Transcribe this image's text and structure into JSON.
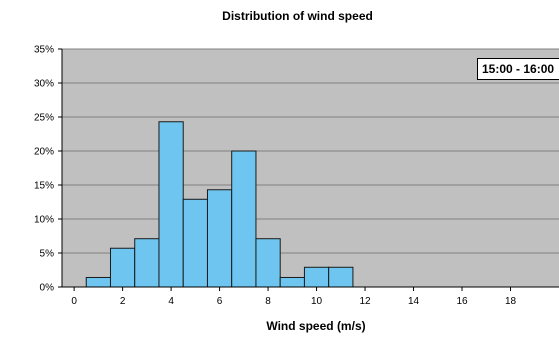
{
  "chart_data": {
    "type": "bar",
    "title": "Distribution of wind speed",
    "xlabel": "Wind speed (m/s)",
    "ylabel": "",
    "annotation": "15:00 - 16:00",
    "ylim": [
      0,
      35
    ],
    "xlim": [
      -0.5,
      20
    ],
    "y_ticks": [
      "0%",
      "5%",
      "10%",
      "15%",
      "20%",
      "25%",
      "30%",
      "35%"
    ],
    "x_ticks": [
      "0",
      "2",
      "4",
      "6",
      "8",
      "10",
      "12",
      "14",
      "16",
      "18"
    ],
    "grid": true,
    "bin_width": 1,
    "bins": [
      {
        "x": 1,
        "value": 1.4
      },
      {
        "x": 2,
        "value": 5.7
      },
      {
        "x": 3,
        "value": 7.1
      },
      {
        "x": 4,
        "value": 24.3
      },
      {
        "x": 5,
        "value": 12.9
      },
      {
        "x": 6,
        "value": 14.3
      },
      {
        "x": 7,
        "value": 20.0
      },
      {
        "x": 8,
        "value": 7.1
      },
      {
        "x": 9,
        "value": 1.4
      },
      {
        "x": 10,
        "value": 2.9
      },
      {
        "x": 11,
        "value": 2.9
      }
    ],
    "colors": {
      "bar": "#6ec6f0",
      "bar_stroke": "#1a1a1a",
      "plot_bg": "#c0c0c0",
      "grid": "#808080"
    }
  }
}
